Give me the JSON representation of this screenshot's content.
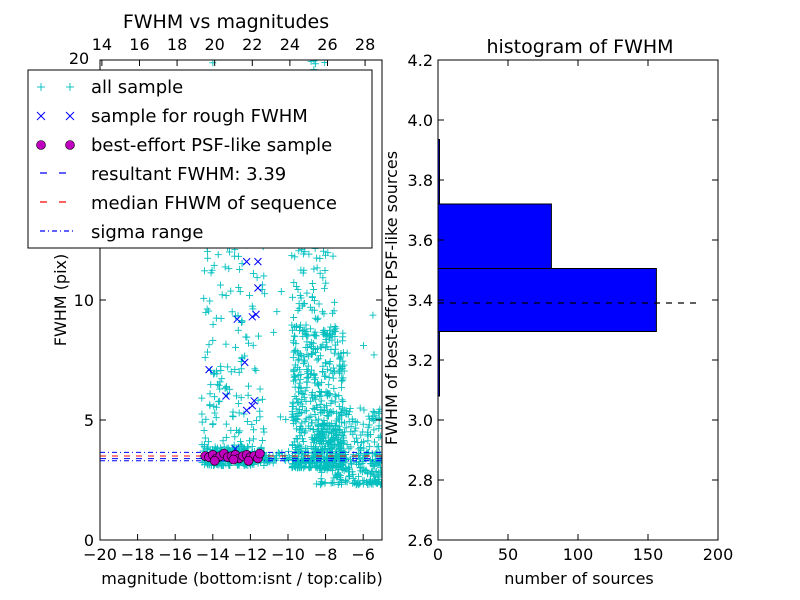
{
  "chart_data": [
    {
      "type": "scatter",
      "title": "FWHM vs magnitudes",
      "xlabel": "magnitude (bottom:isnt / top:calib)",
      "ylabel": "FWHM (pix)",
      "xlim": [
        -20,
        -5
      ],
      "ylim": [
        0,
        20
      ],
      "x_ticks": [
        -20,
        -18,
        -16,
        -14,
        -12,
        -10,
        -8,
        -6
      ],
      "x_tick_labels": [
        "−20",
        "−18",
        "−16",
        "−14",
        "−12",
        "−10",
        "−8",
        "−6"
      ],
      "y_ticks": [
        0,
        5,
        10
      ],
      "y_tick_labels": [
        "0",
        "5",
        "10"
      ],
      "top_axis": {
        "ticks": [
          14,
          16,
          18,
          20,
          22,
          24,
          26,
          28
        ],
        "tick_labels": [
          "14",
          "16",
          "18",
          "20",
          "22",
          "24",
          "26",
          "28"
        ],
        "offset": 33.9
      },
      "top_left_label": "20",
      "legend": {
        "placement": "upper-left",
        "entries": [
          {
            "label": "all sample",
            "marker": "plus",
            "color": "#00bfbf"
          },
          {
            "label": "sample for rough FWHM",
            "marker": "x",
            "color": "#0000ff"
          },
          {
            "label": "best-effort PSF-like sample",
            "marker": "circle",
            "color": "#bf00bf"
          },
          {
            "label": "resultant FWHM: 3.39",
            "marker": "dashed",
            "color": "#0000ff"
          },
          {
            "label": "median FHWM of sequence",
            "marker": "dashed",
            "color": "#ff0000"
          },
          {
            "label": "sigma range",
            "marker": "dashdot",
            "color": "#0000ff"
          }
        ]
      },
      "lines": {
        "resultant_fwhm": 3.39,
        "median_fwhm": 3.5,
        "sigma_range": [
          3.3,
          3.65
        ]
      },
      "series": [
        {
          "name": "sample for rough FWHM",
          "marker": "x",
          "color": "#0000ff",
          "points": [
            [
              -14.2,
              7.1
            ],
            [
              -13.3,
              6.0
            ],
            [
              -12.7,
              9.2
            ],
            [
              -12.3,
              7.4
            ],
            [
              -12.2,
              5.4
            ],
            [
              -12.2,
              11.6
            ],
            [
              -11.9,
              5.6
            ],
            [
              -11.8,
              5.8
            ],
            [
              -11.6,
              11.6
            ],
            [
              -11.6,
              10.5
            ],
            [
              -11.9,
              9.3
            ],
            [
              -11.7,
              9.4
            ],
            [
              -12.8,
              3.8
            ]
          ]
        },
        {
          "name": "best-effort PSF-like sample",
          "marker": "circle",
          "color": "#bf00bf",
          "points": [
            [
              -14.4,
              3.5
            ],
            [
              -14.2,
              3.45
            ],
            [
              -14.0,
              3.55
            ],
            [
              -13.8,
              3.4
            ],
            [
              -13.6,
              3.5
            ],
            [
              -13.4,
              3.6
            ],
            [
              -13.2,
              3.45
            ],
            [
              -13.0,
              3.5
            ],
            [
              -12.8,
              3.55
            ],
            [
              -12.6,
              3.4
            ],
            [
              -12.4,
              3.5
            ],
            [
              -12.2,
              3.55
            ],
            [
              -12.0,
              3.45
            ],
            [
              -11.8,
              3.5
            ],
            [
              -11.6,
              3.4
            ],
            [
              -11.5,
              3.6
            ],
            [
              -13.9,
              3.3
            ],
            [
              -12.9,
              3.35
            ],
            [
              -12.1,
              3.3
            ]
          ]
        }
      ],
      "all_sample_clusters": [
        {
          "x_range": [
            -14.6,
            -11.2
          ],
          "y_range": [
            3.1,
            3.9
          ],
          "n": 180
        },
        {
          "x_range": [
            -14.6,
            -12.4
          ],
          "y_range": [
            3.5,
            15
          ],
          "n": 140
        },
        {
          "x_range": [
            -12.6,
            -11.2
          ],
          "y_range": [
            3.5,
            15
          ],
          "n": 50
        },
        {
          "x_range": [
            -9.8,
            -7.0
          ],
          "y_range": [
            3.0,
            9.0
          ],
          "n": 520
        },
        {
          "x_range": [
            -9.8,
            -7.5
          ],
          "y_range": [
            8.5,
            20
          ],
          "n": 180
        },
        {
          "x_range": [
            -8.5,
            -5.0
          ],
          "y_range": [
            2.3,
            5.5
          ],
          "n": 260
        },
        {
          "x_range": [
            -11.2,
            -5.0
          ],
          "y_range": [
            3.2,
            3.7
          ],
          "n": 120
        },
        {
          "x_range": [
            -16.0,
            -5.2
          ],
          "y_range": [
            5,
            20
          ],
          "n": 40
        }
      ]
    },
    {
      "type": "bar",
      "orientation": "horizontal",
      "title": "histogram of FWHM",
      "xlabel": "number of sources",
      "ylabel": "FWHM of best-effort PSF-like sources",
      "xlim": [
        0,
        200
      ],
      "ylim": [
        2.6,
        4.2
      ],
      "x_ticks": [
        0,
        50,
        100,
        150,
        200
      ],
      "y_ticks": [
        2.6,
        2.8,
        3.0,
        3.2,
        3.4,
        3.6,
        3.8,
        4.0,
        4.2
      ],
      "y_tick_labels": [
        "2.6",
        "2.8",
        "3.0",
        "3.2",
        "3.4",
        "3.6",
        "3.8",
        "4.0",
        "4.2"
      ],
      "color": "#0000ff",
      "bins": [
        {
          "y0": 3.08,
          "y1": 3.295,
          "count": 1
        },
        {
          "y0": 3.295,
          "y1": 3.505,
          "count": 156
        },
        {
          "y0": 3.505,
          "y1": 3.72,
          "count": 81
        },
        {
          "y0": 3.72,
          "y1": 3.935,
          "count": 1
        }
      ],
      "reference_line": {
        "y": 3.39,
        "style": "dashed",
        "color": "#000000"
      }
    }
  ]
}
